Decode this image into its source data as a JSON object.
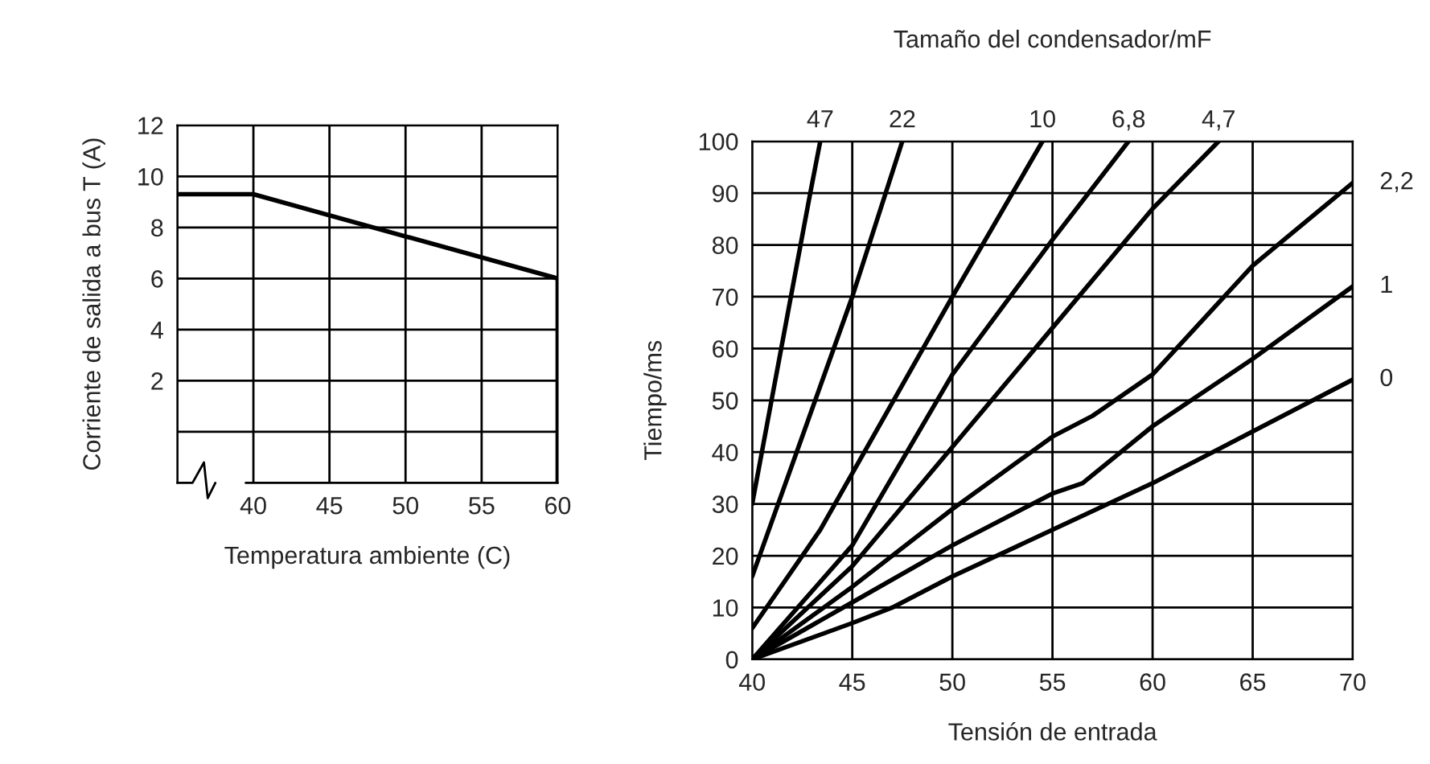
{
  "chart_data": [
    {
      "type": "line",
      "xlabel": "Temperatura ambiente (C)",
      "ylabel": "Corriente de salida a bus T (A)",
      "x": [
        35,
        40,
        60,
        60
      ],
      "series": [
        {
          "color": "#000000",
          "values": [
            9.3,
            9.3,
            6,
            -2
          ]
        }
      ],
      "xlim": [
        35,
        60
      ],
      "xticks": [
        {
          "value": 35,
          "label": null
        },
        40,
        45,
        50,
        55,
        60
      ],
      "ylim": [
        -2,
        12
      ],
      "yticks": [
        {
          "value": 0,
          "label": null
        },
        2,
        4,
        6,
        8,
        10,
        12
      ],
      "grid": true,
      "line_style": "solid"
    },
    {
      "type": "line",
      "title": "Tamaño del condensador/mF",
      "xlabel": "Tensión de entrada",
      "ylabel": "Tiempo/ms",
      "series": [
        {
          "name": "47",
          "color": "#000000",
          "x": [
            40,
            42.9,
            43.4
          ],
          "values": [
            30,
            90,
            100
          ]
        },
        {
          "name": "22",
          "color": "#000000",
          "x": [
            40,
            45,
            47.5
          ],
          "values": [
            16,
            70,
            100
          ]
        },
        {
          "name": "10",
          "color": "#000000",
          "x": [
            40,
            43.4,
            50,
            54.5
          ],
          "values": [
            6,
            25,
            70,
            100
          ]
        },
        {
          "name": "6,8",
          "color": "#000000",
          "x": [
            40,
            45,
            50,
            55,
            58.8
          ],
          "values": [
            0,
            22,
            55,
            81,
            100
          ]
        },
        {
          "name": "4,7",
          "color": "#000000",
          "x": [
            40,
            45,
            50,
            55,
            60,
            63.3
          ],
          "values": [
            0,
            18,
            41,
            64,
            87,
            100
          ]
        },
        {
          "name": "2,2",
          "color": "#000000",
          "x": [
            40,
            45,
            50,
            55,
            57,
            60,
            65,
            70
          ],
          "values": [
            0,
            14,
            29,
            43,
            47,
            55,
            76,
            92
          ]
        },
        {
          "name": "1",
          "color": "#000000",
          "x": [
            40,
            45,
            50,
            55,
            56.5,
            60,
            65,
            70
          ],
          "values": [
            0,
            11,
            22,
            32,
            34,
            45,
            58,
            72
          ]
        },
        {
          "name": "0",
          "color": "#000000",
          "x": [
            40,
            45,
            47,
            50,
            55,
            60,
            65,
            70
          ],
          "values": [
            0,
            7,
            10,
            16,
            25,
            34,
            44,
            54
          ]
        }
      ],
      "xlim": [
        40,
        70
      ],
      "xticks": [
        40,
        45,
        50,
        55,
        60,
        65,
        70
      ],
      "ylim": [
        0,
        100
      ],
      "yticks": [
        0,
        10,
        20,
        30,
        40,
        50,
        60,
        70,
        80,
        90,
        100
      ],
      "grid": true,
      "line_style": "solid"
    }
  ]
}
